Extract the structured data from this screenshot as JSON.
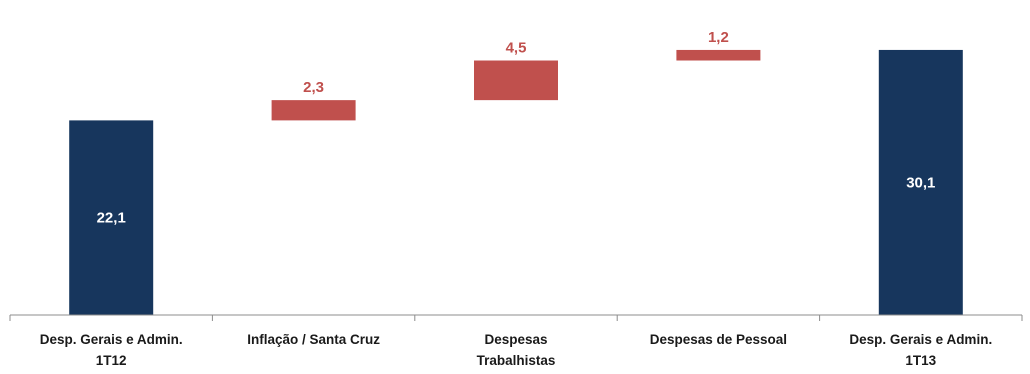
{
  "chart_data": {
    "type": "bar",
    "subtype": "waterfall",
    "categories": [
      [
        "Desp. Gerais e Admin.",
        "1T12"
      ],
      [
        "Inflação / Santa Cruz"
      ],
      [
        "Despesas",
        "Trabalhistas"
      ],
      [
        "Despesas de Pessoal"
      ],
      [
        "Desp. Gerais e Admin.",
        "1T13"
      ]
    ],
    "values": [
      22.1,
      2.3,
      4.5,
      1.2,
      30.1
    ],
    "value_labels": [
      "22,1",
      "2,3",
      "4,5",
      "1,2",
      "30,1"
    ],
    "bar_kinds": [
      "total",
      "increase",
      "increase",
      "increase",
      "total"
    ],
    "ylim": [
      0,
      33.5
    ],
    "grid": false,
    "legend": "none",
    "colors": {
      "total": "#17365d",
      "increase": "#c0504d",
      "axis": "#8c8c8c"
    },
    "title": "",
    "xlabel": "",
    "ylabel": ""
  }
}
